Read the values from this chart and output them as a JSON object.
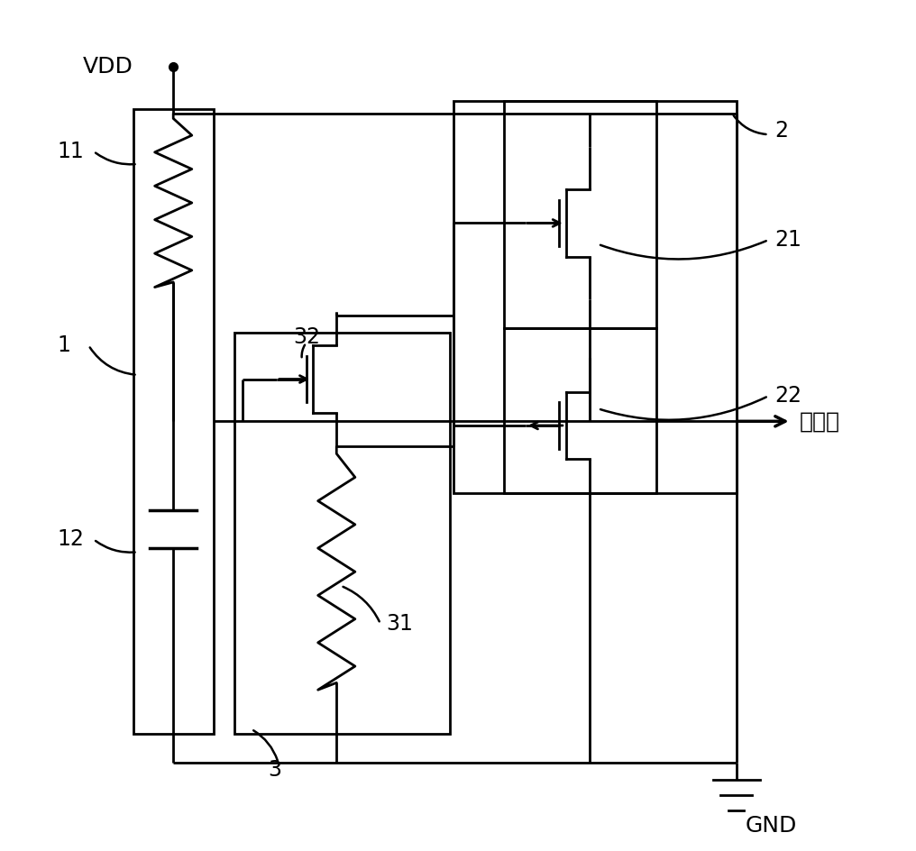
{
  "background_color": "#ffffff",
  "line_color": "#000000",
  "line_width": 2.0,
  "output_label": "输出端"
}
